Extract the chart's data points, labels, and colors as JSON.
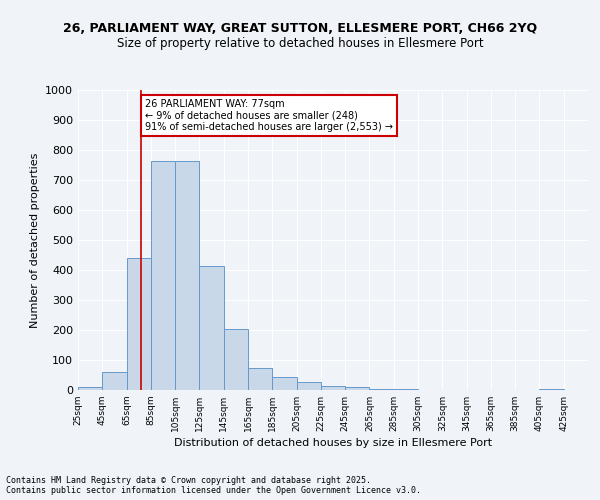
{
  "title1": "26, PARLIAMENT WAY, GREAT SUTTON, ELLESMERE PORT, CH66 2YQ",
  "title2": "Size of property relative to detached houses in Ellesmere Port",
  "xlabel": "Distribution of detached houses by size in Ellesmere Port",
  "ylabel": "Number of detached properties",
  "bin_lefts": [
    25,
    45,
    65,
    85,
    105,
    125,
    145,
    165,
    185,
    205,
    225,
    245,
    265,
    285,
    305,
    325,
    345,
    365,
    385,
    405
  ],
  "counts": [
    10,
    60,
    440,
    765,
    765,
    415,
    205,
    75,
    45,
    28,
    15,
    10,
    5,
    2,
    1,
    0,
    0,
    0,
    0,
    5
  ],
  "bar_color": "#c8d8e8",
  "bar_edge_color": "#6699cc",
  "vline_x": 77,
  "vline_color": "#cc0000",
  "annotation_text": "26 PARLIAMENT WAY: 77sqm\n← 9% of detached houses are smaller (248)\n91% of semi-detached houses are larger (2,553) →",
  "annotation_box_color": "#ffffff",
  "annotation_box_edge": "#cc0000",
  "ylim": [
    0,
    1000
  ],
  "yticks": [
    0,
    100,
    200,
    300,
    400,
    500,
    600,
    700,
    800,
    900,
    1000
  ],
  "tick_positions": [
    25,
    45,
    65,
    85,
    105,
    125,
    145,
    165,
    185,
    205,
    225,
    245,
    265,
    285,
    305,
    325,
    345,
    365,
    385,
    405,
    425
  ],
  "tick_labels": [
    "25sqm",
    "45sqm",
    "65sqm",
    "85sqm",
    "105sqm",
    "125sqm",
    "145sqm",
    "165sqm",
    "185sqm",
    "205sqm",
    "225sqm",
    "245sqm",
    "265sqm",
    "285sqm",
    "305sqm",
    "325sqm",
    "345sqm",
    "365sqm",
    "385sqm",
    "405sqm",
    "425sqm"
  ],
  "footer": "Contains HM Land Registry data © Crown copyright and database right 2025.\nContains public sector information licensed under the Open Government Licence v3.0.",
  "bg_color": "#f0f4f8",
  "grid_color": "#ffffff"
}
